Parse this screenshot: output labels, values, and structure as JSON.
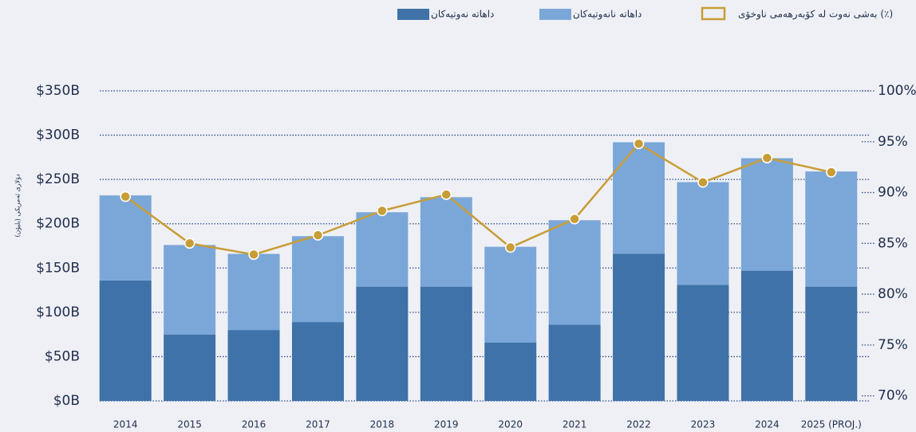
{
  "chart_data": {
    "type": "bar",
    "y_label": "دۆلاری ئەمریکی (بلیۆن)",
    "categories": [
      "2014",
      "2015",
      "2016",
      "2017",
      "2018",
      "2019",
      "2020",
      "2021",
      "2022",
      "2023",
      "2024",
      "2025 (PROJ.)"
    ],
    "series": [
      {
        "name": "داهاتە نەوتیەکان",
        "color": "#3e72a8",
        "values": [
          136,
          75,
          80,
          89,
          129,
          129,
          66,
          86,
          166,
          131,
          147,
          129
        ]
      },
      {
        "name": "داهاتە نانەوتیەکان",
        "color": "#7ba7d8",
        "values": [
          96,
          101,
          86,
          97,
          84,
          101,
          108,
          118,
          126,
          116,
          127,
          130
        ]
      },
      {
        "name": "بەشی نەوت لە کۆبەرهەمی ناوخۆی (٪)",
        "color": "#c89d36",
        "type": "line",
        "axis": "y2",
        "values": [
          89.6,
          85.0,
          83.9,
          85.8,
          88.2,
          89.8,
          84.6,
          87.4,
          94.8,
          91.0,
          93.4,
          92.0
        ]
      }
    ],
    "ylim": [
      0,
      350
    ],
    "yticks": [
      {
        "value": 0,
        "label": "$0B"
      },
      {
        "value": 50,
        "label": "$50B"
      },
      {
        "value": 100,
        "label": "$100B"
      },
      {
        "value": 150,
        "label": "$150B"
      },
      {
        "value": 200,
        "label": "$200B"
      },
      {
        "value": 250,
        "label": "$250B"
      },
      {
        "value": 300,
        "label": "$300B"
      },
      {
        "value": 350,
        "label": "$350B"
      }
    ],
    "y2lim": [
      69.5,
      100
    ],
    "y2ticks": [
      {
        "value": 70,
        "label": "70%"
      },
      {
        "value": 75,
        "label": "75%"
      },
      {
        "value": 80,
        "label": "80%"
      },
      {
        "value": 85,
        "label": "85%"
      },
      {
        "value": 90,
        "label": "90%"
      },
      {
        "value": 95,
        "label": "95%"
      },
      {
        "value": 100,
        "label": "100%"
      }
    ],
    "grid": true
  }
}
